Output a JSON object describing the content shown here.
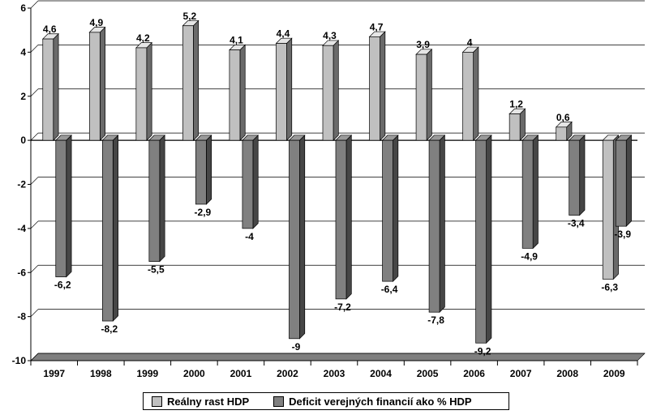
{
  "chart_data": {
    "type": "bar",
    "categories": [
      "1997",
      "1998",
      "1999",
      "2000",
      "2001",
      "2002",
      "2003",
      "2004",
      "2005",
      "2006",
      "2007",
      "2008",
      "2009"
    ],
    "series": [
      {
        "name": "Reálny rast HDP",
        "color": "#c0c0c0",
        "values": [
          4.6,
          4.9,
          4.2,
          5.2,
          4.1,
          4.4,
          4.3,
          4.7,
          3.9,
          4,
          1.2,
          0.6,
          -6.3
        ],
        "labels": [
          "4,6",
          "4,9",
          "4,2",
          "5,2",
          "4,1",
          "4,4",
          "4,3",
          "4,7",
          "3,9",
          "4",
          "1,2",
          "0,6",
          "-6,3"
        ]
      },
      {
        "name": "Deficit verejných financií ako % HDP",
        "color": "#808080",
        "values": [
          -6.2,
          -8.2,
          -5.5,
          -2.9,
          -4,
          -9,
          -7.2,
          -6.4,
          -7.8,
          -9.2,
          -4.9,
          -3.4,
          -3.9
        ],
        "labels": [
          "-6,2",
          "-8,2",
          "-5,5",
          "-2,9",
          "-4",
          "-9",
          "-7,2",
          "-6,4",
          "-7,8",
          "-9,2",
          "-4,9",
          "-3,4",
          "-3,9"
        ]
      }
    ],
    "yticks": [
      "6",
      "4",
      "2",
      "0",
      "-2",
      "-4",
      "-6",
      "-8",
      "-10"
    ],
    "ylim": [
      -10,
      6
    ],
    "grid": true,
    "legend": "bottom"
  }
}
